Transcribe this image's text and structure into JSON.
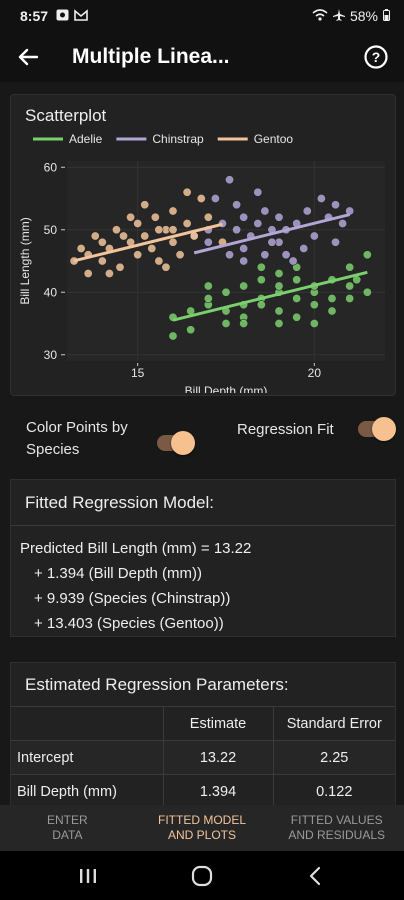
{
  "status_bar": {
    "time": "8:57",
    "battery": "58%"
  },
  "app_bar": {
    "title": "Multiple Linea..."
  },
  "scatter": {
    "card_title": "Scatterplot",
    "chart_data": {
      "type": "scatter",
      "xlabel": "Bill Depth (mm)",
      "ylabel": "Bill Length (mm)",
      "xlim": [
        13.0,
        22.0
      ],
      "ylim": [
        29.0,
        61.0
      ],
      "x_ticks": [
        15,
        20
      ],
      "y_ticks": [
        30,
        40,
        50,
        60
      ],
      "legend": "top-left",
      "grid": true,
      "series": [
        {
          "name": "Adelie",
          "color": "#7ccf6e",
          "fit": {
            "intercept": 13.22,
            "slope": 1.394
          },
          "points": [
            [
              16,
              36
            ],
            [
              16.5,
              37
            ],
            [
              17,
              38
            ],
            [
              17,
              39
            ],
            [
              17.5,
              40
            ],
            [
              17.5,
              37
            ],
            [
              18,
              38
            ],
            [
              18,
              41
            ],
            [
              18,
              36
            ],
            [
              18.5,
              39
            ],
            [
              18.5,
              42
            ],
            [
              18.5,
              38
            ],
            [
              19,
              40
            ],
            [
              19,
              37
            ],
            [
              19,
              43
            ],
            [
              19,
              41
            ],
            [
              19.5,
              39
            ],
            [
              19.5,
              36
            ],
            [
              19.5,
              42
            ],
            [
              20,
              40
            ],
            [
              20,
              38
            ],
            [
              20,
              41
            ],
            [
              20.5,
              39
            ],
            [
              20.5,
              42
            ],
            [
              20.5,
              37
            ],
            [
              21,
              41
            ],
            [
              21,
              44
            ],
            [
              21.5,
              40
            ],
            [
              21.5,
              46
            ],
            [
              17.5,
              35
            ],
            [
              16.5,
              34
            ],
            [
              18,
              35
            ],
            [
              19,
              35
            ],
            [
              20,
              35
            ],
            [
              21,
              39
            ],
            [
              19.5,
              44
            ],
            [
              18.5,
              44
            ],
            [
              17,
              41
            ],
            [
              16,
              33
            ],
            [
              21.2,
              42
            ]
          ]
        },
        {
          "name": "Chinstrap",
          "color": "#b3a6d6",
          "fit": {
            "intercept": 23.159,
            "slope": 1.394
          },
          "points": [
            [
              16.6,
              49
            ],
            [
              17,
              50
            ],
            [
              17,
              48
            ],
            [
              17.4,
              51
            ],
            [
              17.6,
              46
            ],
            [
              17.8,
              50
            ],
            [
              18,
              52
            ],
            [
              18,
              47
            ],
            [
              18.2,
              49
            ],
            [
              18.4,
              51
            ],
            [
              18.6,
              53
            ],
            [
              18.6,
              46
            ],
            [
              18.8,
              50
            ],
            [
              19,
              48
            ],
            [
              19,
              52
            ],
            [
              19.2,
              50
            ],
            [
              19.4,
              45
            ],
            [
              19.5,
              51
            ],
            [
              19.8,
              53
            ],
            [
              20,
              49
            ],
            [
              20.2,
              55
            ],
            [
              20.4,
              52
            ],
            [
              20.6,
              48
            ],
            [
              20.8,
              51
            ],
            [
              21,
              53
            ],
            [
              17.2,
              55
            ],
            [
              18.4,
              56
            ],
            [
              19.2,
              46
            ],
            [
              18,
              45
            ],
            [
              17.8,
              54
            ],
            [
              20.6,
              54
            ],
            [
              19.7,
              47
            ],
            [
              17.6,
              58
            ],
            [
              18.8,
              48
            ]
          ]
        },
        {
          "name": "Gentoo",
          "color": "#f2c49b",
          "fit": {
            "intercept": 26.623,
            "slope": 1.394
          },
          "points": [
            [
              13.2,
              45
            ],
            [
              13.4,
              47
            ],
            [
              13.6,
              46
            ],
            [
              13.8,
              49
            ],
            [
              14,
              48
            ],
            [
              14,
              45
            ],
            [
              14.2,
              47
            ],
            [
              14.4,
              50
            ],
            [
              14.5,
              44
            ],
            [
              14.6,
              49
            ],
            [
              14.8,
              48
            ],
            [
              15,
              51
            ],
            [
              15,
              46
            ],
            [
              15.2,
              49
            ],
            [
              15.4,
              47
            ],
            [
              15.5,
              52
            ],
            [
              15.6,
              45
            ],
            [
              15.8,
              50
            ],
            [
              16,
              48
            ],
            [
              16,
              53
            ],
            [
              16.2,
              46
            ],
            [
              16.4,
              51
            ],
            [
              16.6,
              49
            ],
            [
              16.8,
              55
            ],
            [
              17,
              52
            ],
            [
              15.2,
              54
            ],
            [
              14.2,
              43
            ],
            [
              15.8,
              44
            ],
            [
              16.4,
              56
            ],
            [
              17.4,
              48
            ],
            [
              13.6,
              43
            ],
            [
              14.8,
              52
            ],
            [
              15.6,
              50
            ],
            [
              16,
              50
            ]
          ]
        }
      ]
    }
  },
  "controls": {
    "color_points_label": "Color Points by Species",
    "regression_fit_label": "Regression Fit"
  },
  "model": {
    "title": "Fitted Regression Model:",
    "line1": "Predicted Bill Length (mm) =  13.22",
    "line2": "+ 1.394 (Bill Depth (mm))",
    "line3": "+ 9.939 (Species (Chinstrap))",
    "line4": "+ 13.403 (Species (Gentoo))"
  },
  "params": {
    "title": "Estimated Regression Parameters:",
    "headers": [
      "",
      "Estimate",
      "Standard Error"
    ],
    "rows": [
      [
        "Intercept",
        "13.22",
        "2.25"
      ],
      [
        "Bill Depth (mm)",
        "1.394",
        "0.122"
      ]
    ]
  },
  "bottom_nav": {
    "tabs": [
      {
        "line1": "ENTER",
        "line2": "DATA"
      },
      {
        "line1": "FITTED MODEL",
        "line2": "AND PLOTS"
      },
      {
        "line1": "FITTED VALUES",
        "line2": "AND RESIDUALS"
      }
    ]
  }
}
